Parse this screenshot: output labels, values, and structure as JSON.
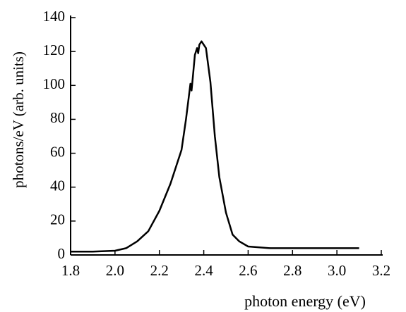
{
  "chart_data": {
    "type": "line",
    "xlabel": "photon energy (eV)",
    "ylabel": "photons/eV (arb. units)",
    "x": [
      1.8,
      1.9,
      2.0,
      2.05,
      2.1,
      2.15,
      2.2,
      2.25,
      2.3,
      2.32,
      2.34,
      2.345,
      2.35,
      2.36,
      2.37,
      2.375,
      2.38,
      2.39,
      2.41,
      2.43,
      2.45,
      2.47,
      2.5,
      2.53,
      2.56,
      2.6,
      2.7,
      2.8,
      2.9,
      3.0,
      3.1
    ],
    "values": [
      2,
      2,
      2.5,
      4,
      8,
      14,
      26,
      42,
      62,
      80,
      101,
      97,
      104,
      118,
      122,
      119,
      124,
      126,
      122,
      102,
      70,
      46,
      25,
      12,
      8,
      5,
      4,
      4,
      4,
      4,
      4
    ],
    "color": "#000000",
    "xlim": [
      1.8,
      3.2
    ],
    "xticks": [
      1.8,
      {
        "value": 2,
        "label": "2.0"
      },
      2.2,
      2.4,
      2.6,
      2.8,
      {
        "value": 3,
        "label": "3.0"
      },
      3.2
    ],
    "ylim": [
      0,
      140
    ],
    "yticks": [
      0,
      20,
      40,
      60,
      80,
      100,
      120,
      140
    ]
  }
}
